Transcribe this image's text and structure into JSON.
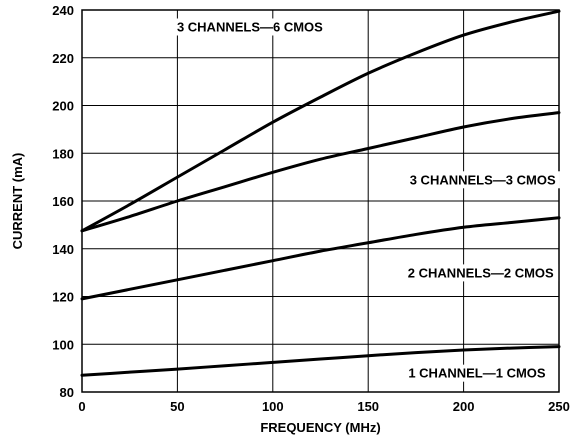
{
  "chart_data": {
    "type": "line",
    "xlabel": "FREQUENCY (MHz)",
    "ylabel": "CURRENT (mA)",
    "xlim": [
      0,
      250
    ],
    "ylim": [
      80,
      240
    ],
    "xticks": [
      0,
      50,
      100,
      150,
      200,
      250
    ],
    "yticks": [
      80,
      100,
      120,
      140,
      160,
      180,
      200,
      220,
      240
    ],
    "grid": true,
    "legend": "none (inline labels)",
    "series": [
      {
        "name": "3 CHANNELS—6 CMOS",
        "x": [
          0,
          25,
          50,
          75,
          100,
          125,
          150,
          175,
          200,
          225,
          250
        ],
        "y": [
          147.5,
          158.5,
          170,
          181.5,
          193,
          203.5,
          213.5,
          222,
          229.5,
          235,
          239.5
        ]
      },
      {
        "name": "3 CHANNELS—3 CMOS",
        "x": [
          0,
          25,
          50,
          75,
          100,
          125,
          150,
          175,
          200,
          225,
          250
        ],
        "y": [
          147.5,
          153.5,
          160,
          166,
          172,
          177.5,
          182,
          186.5,
          191,
          194.5,
          197
        ]
      },
      {
        "name": "2 CHANNELS—2 CMOS",
        "x": [
          0,
          25,
          50,
          75,
          100,
          125,
          150,
          175,
          200,
          225,
          250
        ],
        "y": [
          119,
          123,
          127,
          131,
          135,
          139,
          142.5,
          146,
          149,
          151,
          153
        ]
      },
      {
        "name": "1 CHANNEL—1 CMOS",
        "x": [
          0,
          25,
          50,
          75,
          100,
          125,
          150,
          175,
          200,
          225,
          250
        ],
        "y": [
          87,
          88.3,
          89.6,
          91,
          92.4,
          93.8,
          95.2,
          96.5,
          97.6,
          98.4,
          99
        ]
      }
    ]
  }
}
